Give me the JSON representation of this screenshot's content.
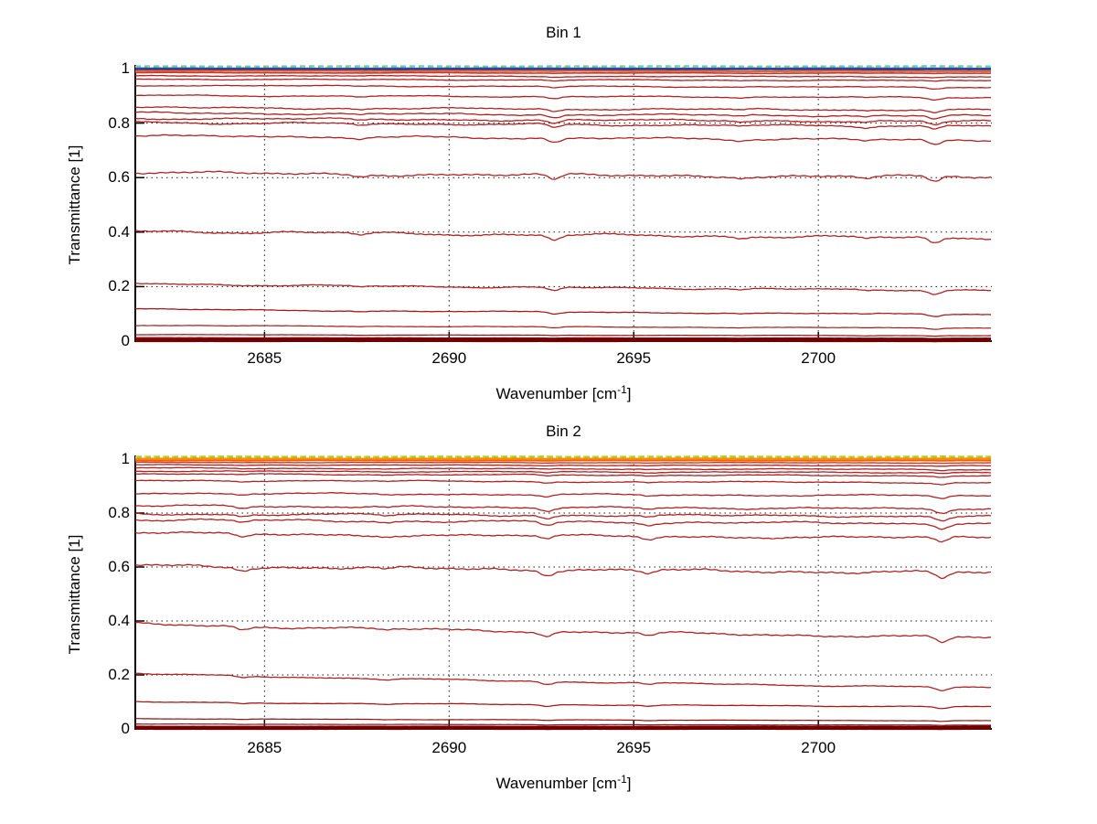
{
  "colors": {
    "background": "#ffffff",
    "axis": "#000000",
    "grid_dot": "#1a1a1a",
    "spectrum_red": "#b22222",
    "spectrum_dark_red": "#700000",
    "bin1_top_blue": "#2850c8",
    "bin1_top_cyan": "#5ec9e8",
    "bin2_top_orange": "#ff8a00",
    "bin2_top_green": "#9ed42c"
  },
  "chart_data": [
    {
      "type": "line",
      "title": "Bin 1",
      "xlabel": {
        "prefix": "Wavenumber [cm",
        "sup": "-1",
        "suffix": "]"
      },
      "ylabel": "Transmittance [1]",
      "xlim": [
        2681.5,
        2704.7
      ],
      "ylim": [
        0,
        1
      ],
      "xticks": [
        2685,
        2690,
        2695,
        2700
      ],
      "yticks": [
        1,
        0.8,
        0.6,
        0.4,
        0.2,
        0
      ],
      "ytick_labels": [
        "1",
        "0.8",
        "0.6",
        "0.4",
        "0.2",
        "0"
      ],
      "grid": "dotted",
      "absorption_dips": [
        {
          "wavenumber": 2687.6,
          "depth": 0.007
        },
        {
          "wavenumber": 2692.85,
          "depth": 0.02
        },
        {
          "wavenumber": 2697.9,
          "depth": 0.006
        },
        {
          "wavenumber": 2701.3,
          "depth": 0.007
        },
        {
          "wavenumber": 2703.15,
          "depth": 0.022
        }
      ],
      "series": [
        {
          "color": "#5ec9e8",
          "t0": 1.008,
          "t1": 1.008,
          "w": 2.4,
          "dash": "6 4",
          "noise": 0.5
        },
        {
          "color": "#86d14e",
          "t0": 1.007,
          "t1": 1.007,
          "w": 2.0,
          "dash": "3 7",
          "noise": 0.5
        },
        {
          "color": "#e3db3c",
          "t0": 1.005,
          "t1": 1.005,
          "w": 1.6,
          "dash": "2 11",
          "noise": 0.5
        },
        {
          "color": "#2850c8",
          "t0": 1.0,
          "t1": 1.0,
          "w": 2.4,
          "noise": 0.4
        },
        {
          "color": "#1c2a7a",
          "t0": 0.9965,
          "t1": 0.9965,
          "w": 1.4,
          "noise": 0.4
        },
        {
          "color": "#e8622e",
          "t0": 0.9915,
          "t1": 0.99,
          "w": 2.0,
          "noise": 0.5
        },
        {
          "color": "#cf3626",
          "t0": 0.985,
          "t1": 0.983,
          "w": 1.6,
          "noise": 0.6
        },
        {
          "color": "#b22222",
          "t0": 0.9745,
          "t1": 0.9695,
          "w": 1.3,
          "noise": 1.0
        },
        {
          "color": "#b22222",
          "t0": 0.9615,
          "t1": 0.956,
          "w": 1.3,
          "noise": 1.0
        },
        {
          "color": "#b22222",
          "t0": 0.9385,
          "t1": 0.9315,
          "w": 1.3,
          "noise": 1.0
        },
        {
          "color": "#b22222",
          "t0": 0.9015,
          "t1": 0.894,
          "w": 1.3,
          "noise": 1.0
        },
        {
          "color": "#b22222",
          "t0": 0.857,
          "t1": 0.848,
          "w": 1.3,
          "noise": 1.2
        },
        {
          "color": "#b22222",
          "t0": 0.838,
          "t1": 0.826,
          "w": 1.3,
          "noise": 1.2
        },
        {
          "color": "#b22222",
          "t0": 0.818,
          "t1": 0.806,
          "w": 1.3,
          "noise": 1.2
        },
        {
          "color": "#b22222",
          "t0": 0.8025,
          "t1": 0.7885,
          "w": 1.3,
          "noise": 1.2
        },
        {
          "color": "#b22222",
          "t0": 0.754,
          "t1": 0.738,
          "w": 1.3,
          "noise": 1.2
        },
        {
          "color": "#b22222",
          "t0": 0.618,
          "t1": 0.602,
          "w": 1.3,
          "noise": 1.4
        },
        {
          "color": "#b22222",
          "t0": 0.405,
          "t1": 0.378,
          "w": 1.3,
          "noise": 1.3
        },
        {
          "color": "#b22222",
          "t0": 0.211,
          "t1": 0.186,
          "w": 1.3,
          "noise": 1.0
        },
        {
          "color": "#a81a1a",
          "t0": 0.118,
          "t1": 0.098,
          "w": 1.3,
          "noise": 0.8
        },
        {
          "color": "#a81a1a",
          "t0": 0.058,
          "t1": 0.048,
          "w": 1.2,
          "noise": 0.6
        },
        {
          "color": "#901212",
          "t0": 0.024,
          "t1": 0.02,
          "w": 1.2,
          "noise": 0.4
        },
        {
          "color": "#901212",
          "t0": 0.013,
          "t1": 0.011,
          "w": 1.2,
          "noise": 0.3
        },
        {
          "color": "#700000",
          "t0": 0.004,
          "t1": 0.004,
          "w": 4.5,
          "noise": 0.15
        }
      ]
    },
    {
      "type": "line",
      "title": "Bin 2",
      "xlabel": {
        "prefix": "Wavenumber [cm",
        "sup": "-1",
        "suffix": "]"
      },
      "ylabel": "Transmittance [1]",
      "xlim": [
        2681.5,
        2704.7
      ],
      "ylim": [
        0,
        1
      ],
      "xticks": [
        2685,
        2690,
        2695,
        2700
      ],
      "yticks": [
        1,
        0.8,
        0.6,
        0.4,
        0.2,
        0
      ],
      "ytick_labels": [
        "1",
        "0.8",
        "0.6",
        "0.4",
        "0.2",
        "0"
      ],
      "grid": "dotted",
      "absorption_dips": [
        {
          "wavenumber": 2684.4,
          "depth": 0.012
        },
        {
          "wavenumber": 2688.3,
          "depth": 0.006
        },
        {
          "wavenumber": 2692.65,
          "depth": 0.018
        },
        {
          "wavenumber": 2695.4,
          "depth": 0.012
        },
        {
          "wavenumber": 2703.35,
          "depth": 0.022
        }
      ],
      "series": [
        {
          "color": "#9ed42c",
          "t0": 1.008,
          "t1": 1.008,
          "w": 2.6,
          "dash": "7 3",
          "noise": 0.5
        },
        {
          "color": "#dfe02f",
          "t0": 1.006,
          "t1": 1.006,
          "w": 1.8,
          "dash": "2 8",
          "noise": 0.5
        },
        {
          "color": "#ff8a00",
          "t0": 1.0,
          "t1": 1.0,
          "w": 3.0,
          "noise": 0.4
        },
        {
          "color": "#f25c12",
          "t0": 0.9945,
          "t1": 0.994,
          "w": 1.6,
          "noise": 0.5
        },
        {
          "color": "#d23a20",
          "t0": 0.988,
          "t1": 0.986,
          "w": 1.4,
          "noise": 0.6
        },
        {
          "color": "#b22222",
          "t0": 0.979,
          "t1": 0.9755,
          "w": 1.3,
          "noise": 0.8
        },
        {
          "color": "#b22222",
          "t0": 0.967,
          "t1": 0.9615,
          "w": 1.3,
          "noise": 1.0
        },
        {
          "color": "#b22222",
          "t0": 0.956,
          "t1": 0.95,
          "w": 1.3,
          "noise": 1.0
        },
        {
          "color": "#b22222",
          "t0": 0.9455,
          "t1": 0.938,
          "w": 1.3,
          "noise": 1.1
        },
        {
          "color": "#b22222",
          "t0": 0.922,
          "t1": 0.9125,
          "w": 1.3,
          "noise": 1.1
        },
        {
          "color": "#b22222",
          "t0": 0.8745,
          "t1": 0.864,
          "w": 1.3,
          "noise": 1.2
        },
        {
          "color": "#b22222",
          "t0": 0.8275,
          "t1": 0.8155,
          "w": 1.3,
          "noise": 1.3
        },
        {
          "color": "#b22222",
          "t0": 0.7975,
          "t1": 0.788,
          "w": 1.3,
          "noise": 1.3
        },
        {
          "color": "#b22222",
          "t0": 0.776,
          "t1": 0.7605,
          "w": 1.3,
          "noise": 1.3
        },
        {
          "color": "#b22222",
          "t0": 0.7255,
          "t1": 0.7075,
          "w": 1.3,
          "noise": 1.4
        },
        {
          "color": "#b22222",
          "t0": 0.606,
          "t1": 0.578,
          "w": 1.3,
          "noise": 1.5
        },
        {
          "color": "#b22222",
          "t0": 0.39,
          "t1": 0.338,
          "w": 1.3,
          "noise": 1.2
        },
        {
          "color": "#b22222",
          "t0": 0.206,
          "t1": 0.152,
          "w": 1.3,
          "noise": 0.9
        },
        {
          "color": "#a81a1a",
          "t0": 0.1,
          "t1": 0.082,
          "w": 1.3,
          "noise": 0.7
        },
        {
          "color": "#901212",
          "t0": 0.038,
          "t1": 0.03,
          "w": 1.2,
          "noise": 0.4
        },
        {
          "color": "#901212",
          "t0": 0.018,
          "t1": 0.014,
          "w": 1.2,
          "noise": 0.3
        },
        {
          "color": "#700000",
          "t0": 0.004,
          "t1": 0.004,
          "w": 4.5,
          "noise": 0.15
        }
      ]
    }
  ]
}
